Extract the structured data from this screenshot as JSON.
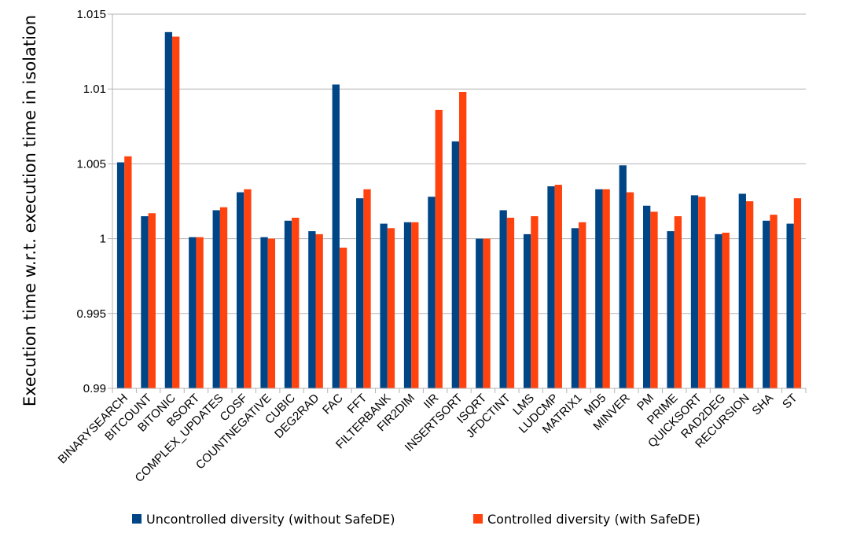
{
  "chart_data": {
    "type": "bar",
    "ylabel": "Execution time w.r.t. execution time in isolation",
    "xlabel": "",
    "ylim": [
      0.99,
      1.015
    ],
    "yticks": [
      "0.99",
      "0.995",
      "1",
      "1.005",
      "1.01",
      "1.015"
    ],
    "ytick_values": [
      0.99,
      0.995,
      1.0,
      1.005,
      1.01,
      1.015
    ],
    "grid": "horizontal",
    "legend_position": "bottom",
    "categories": [
      "BINARYSEARCH",
      "BITCOUNT",
      "BITONIC",
      "BSORT",
      "COMPLEX_UPDATES",
      "COSF",
      "COUNTNEGATIVE",
      "CUBIC",
      "DEG2RAD",
      "FAC",
      "FFT",
      "FILTERBANK",
      "FIR2DIM",
      "IIR",
      "INSERTSORT",
      "ISQRT",
      "JFDCTINT",
      "LMS",
      "LUDCMP",
      "MATRIX1",
      "MD5",
      "MINVER",
      "PM",
      "PRIME",
      "QUICKSORT",
      "RAD2DEG",
      "RECURSION",
      "SHA",
      "ST"
    ],
    "series": [
      {
        "name": "Uncontrolled diversity (without SafeDE)",
        "color": "#004586",
        "values": [
          1.0051,
          1.0015,
          1.0138,
          1.0001,
          1.0019,
          1.0031,
          1.0001,
          1.0012,
          1.0005,
          1.0103,
          1.0027,
          1.001,
          1.0011,
          1.0028,
          1.0065,
          1.0,
          1.0019,
          1.0003,
          1.0035,
          1.0007,
          1.0033,
          1.0049,
          1.0022,
          1.0005,
          1.0029,
          1.0003,
          1.003,
          1.0012,
          1.001
        ]
      },
      {
        "name": "Controlled diversity (with SafeDE)",
        "color": "#ff420e",
        "values": [
          1.0055,
          1.0017,
          1.0135,
          1.0001,
          1.0021,
          1.0033,
          1.0,
          1.0014,
          1.0003,
          0.9994,
          1.0033,
          1.0007,
          1.0011,
          1.0086,
          1.0098,
          1.0,
          1.0014,
          1.0015,
          1.0036,
          1.0011,
          1.0033,
          1.0031,
          1.0018,
          1.0015,
          1.0028,
          1.0004,
          1.0025,
          1.0016,
          1.0027
        ]
      }
    ]
  }
}
